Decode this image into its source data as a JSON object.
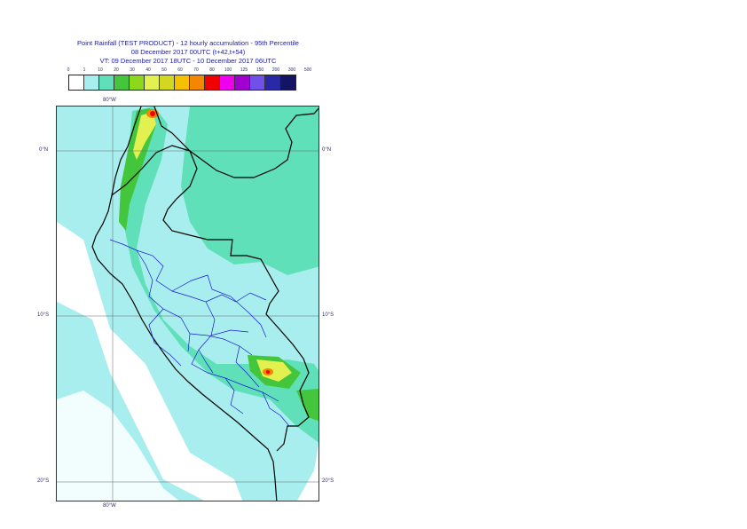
{
  "header": {
    "title_line1": "Point Rainfall (TEST PRODUCT) - 12 hourly accumulation - 95th Percentile",
    "title_line2": "08 December 2017 00UTC (t+42,t+54)",
    "title_line3": "VT: 09 December 2017 18UTC - 10 December 2017 06UTC"
  },
  "legend": {
    "thresholds": [
      "0",
      "1",
      "10",
      "20",
      "30",
      "40",
      "50",
      "60",
      "70",
      "80",
      "100",
      "125",
      "150",
      "200",
      "300",
      "500"
    ],
    "colors": [
      "#ffffff",
      "#a8eeee",
      "#5fe0b8",
      "#44c63c",
      "#8ed81c",
      "#e2f050",
      "#d2d820",
      "#f5c000",
      "#f58600",
      "#f00000",
      "#ee00ee",
      "#a000d0",
      "#7050e8",
      "#2828a8",
      "#141464"
    ]
  },
  "map": {
    "lat_labels": [
      "0°N",
      "10°S",
      "20°S"
    ],
    "lon_labels": [
      "80°W",
      "80°W"
    ]
  }
}
